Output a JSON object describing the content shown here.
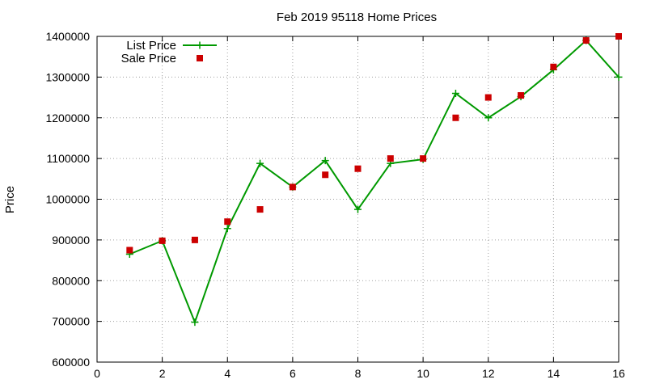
{
  "chart_data": {
    "type": "line",
    "title": "Feb 2019 95118 Home Prices",
    "xlabel": "",
    "ylabel": "Price",
    "xlim": [
      0,
      16
    ],
    "ylim": [
      600000,
      1400000
    ],
    "xticks": [
      0,
      2,
      4,
      6,
      8,
      10,
      12,
      14,
      16
    ],
    "yticks": [
      600000,
      700000,
      800000,
      900000,
      1000000,
      1100000,
      1200000,
      1300000,
      1400000
    ],
    "grid": true,
    "legend_position": "top-left",
    "series": [
      {
        "name": "List Price",
        "style": "lines+points",
        "marker": "plus",
        "color": "#009900",
        "x": [
          1,
          2,
          3,
          4,
          5,
          6,
          7,
          8,
          9,
          10,
          11,
          12,
          13,
          14,
          15,
          16
        ],
        "values": [
          865000,
          898000,
          698000,
          928000,
          1088000,
          1030000,
          1095000,
          975000,
          1088000,
          1098000,
          1260000,
          1200000,
          1252000,
          1318000,
          1390000,
          1300000
        ]
      },
      {
        "name": "Sale Price",
        "style": "points",
        "marker": "square",
        "color": "#cc0000",
        "x": [
          1,
          2,
          3,
          4,
          5,
          6,
          7,
          8,
          9,
          10,
          11,
          12,
          13,
          14,
          15,
          16
        ],
        "values": [
          875000,
          898000,
          900000,
          945000,
          975000,
          1030000,
          1060000,
          1075000,
          1100000,
          1100000,
          1200000,
          1250000,
          1255000,
          1325000,
          1390000,
          1400000
        ]
      }
    ]
  }
}
